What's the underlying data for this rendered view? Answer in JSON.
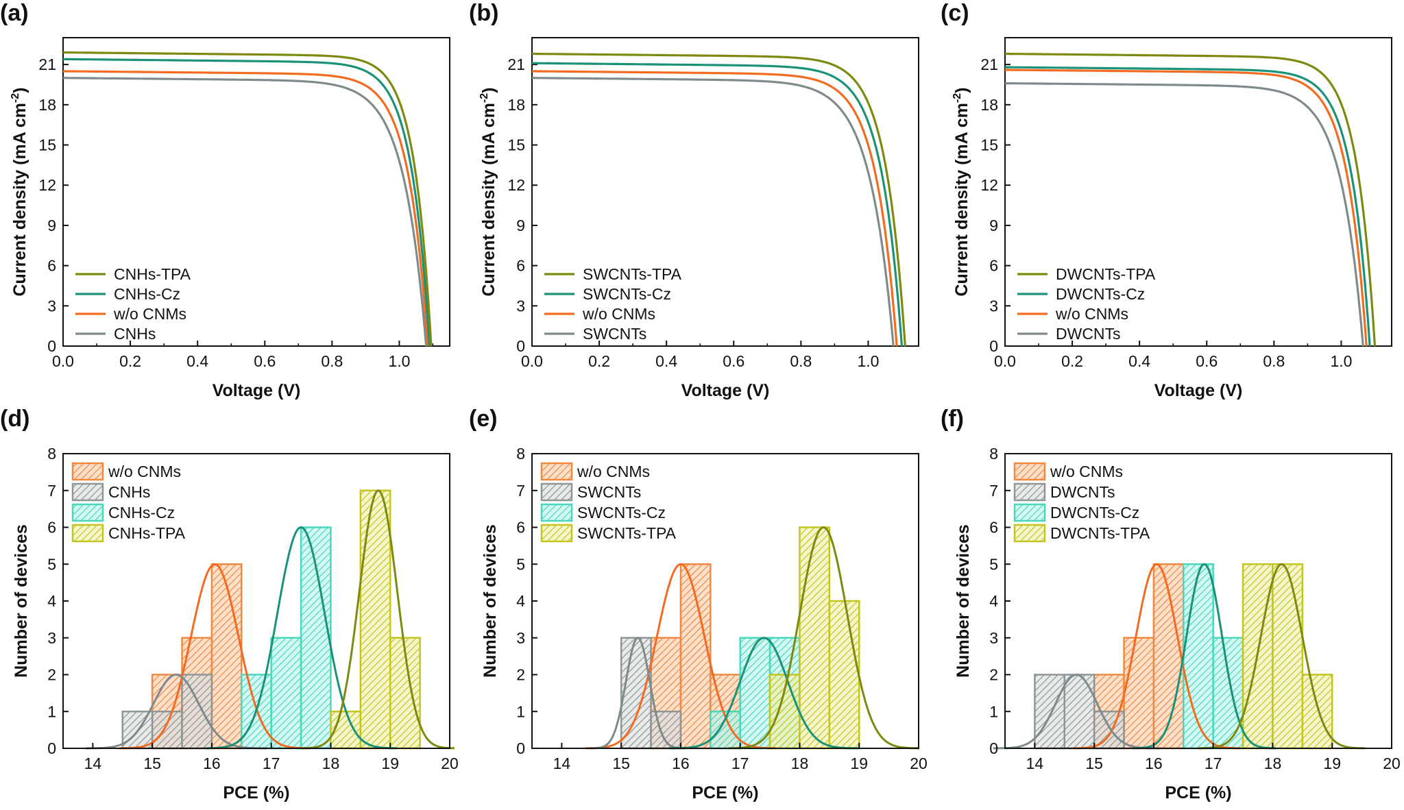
{
  "figure": {
    "panels": [
      {
        "label": "(a)",
        "type": "jv",
        "index": 0
      },
      {
        "label": "(b)",
        "type": "jv",
        "index": 1
      },
      {
        "label": "(c)",
        "type": "jv",
        "index": 2
      },
      {
        "label": "(d)",
        "type": "hist",
        "index": 0
      },
      {
        "label": "(e)",
        "type": "hist",
        "index": 1
      },
      {
        "label": "(f)",
        "type": "hist",
        "index": 2
      }
    ]
  },
  "chart_data": [
    {
      "type": "line",
      "panel": "(a)",
      "xlabel": "Voltage (V)",
      "ylabel": "Current density (mA cm-2)",
      "xlim": [
        0,
        1.15
      ],
      "ylim": [
        0,
        23
      ],
      "xticks": [
        "0.0",
        "0.2",
        "0.4",
        "0.6",
        "0.8",
        "1.0"
      ],
      "yticks": [
        "0",
        "3",
        "6",
        "9",
        "12",
        "15",
        "18",
        "21"
      ],
      "legend": "bottom-left",
      "series": [
        {
          "name": "CNHs-TPA",
          "color": "#7d8a0f",
          "jsc": 21.9,
          "voc": 1.095,
          "knee": 0.88
        },
        {
          "name": "CNHs-Cz",
          "color": "#1a9278",
          "jsc": 21.4,
          "voc": 1.09,
          "knee": 0.86
        },
        {
          "name": "w/o CNMs",
          "color": "#f26b21",
          "jsc": 20.5,
          "voc": 1.085,
          "knee": 0.84
        },
        {
          "name": "CNHs",
          "color": "#7f8a8c",
          "jsc": 20.0,
          "voc": 1.08,
          "knee": 0.8
        }
      ]
    },
    {
      "type": "line",
      "panel": "(b)",
      "xlabel": "Voltage (V)",
      "ylabel": "Current density (mA cm-2)",
      "xlim": [
        0,
        1.15
      ],
      "ylim": [
        0,
        23
      ],
      "xticks": [
        "0.0",
        "0.2",
        "0.4",
        "0.6",
        "0.8",
        "1.0"
      ],
      "yticks": [
        "0",
        "3",
        "6",
        "9",
        "12",
        "15",
        "18",
        "21"
      ],
      "legend": "bottom-left",
      "series": [
        {
          "name": "SWCNTs-TPA",
          "color": "#7d8a0f",
          "jsc": 21.8,
          "voc": 1.11,
          "knee": 0.86
        },
        {
          "name": "SWCNTs-Cz",
          "color": "#1a9278",
          "jsc": 21.1,
          "voc": 1.1,
          "knee": 0.84
        },
        {
          "name": "w/o CNMs",
          "color": "#f26b21",
          "jsc": 20.5,
          "voc": 1.085,
          "knee": 0.82
        },
        {
          "name": "SWCNTs",
          "color": "#7f8a8c",
          "jsc": 20.0,
          "voc": 1.075,
          "knee": 0.78
        }
      ]
    },
    {
      "type": "line",
      "panel": "(c)",
      "xlabel": "Voltage (V)",
      "ylabel": "Current density (mA cm-2)",
      "xlim": [
        0,
        1.15
      ],
      "ylim": [
        0,
        23
      ],
      "xticks": [
        "0.0",
        "0.2",
        "0.4",
        "0.6",
        "0.8",
        "1.0"
      ],
      "yticks": [
        "0",
        "3",
        "6",
        "9",
        "12",
        "15",
        "18",
        "21"
      ],
      "legend": "bottom-left",
      "series": [
        {
          "name": "DWCNTs-TPA",
          "color": "#7d8a0f",
          "jsc": 21.8,
          "voc": 1.1,
          "knee": 0.87
        },
        {
          "name": "DWCNTs-Cz",
          "color": "#1a9278",
          "jsc": 20.8,
          "voc": 1.085,
          "knee": 0.85
        },
        {
          "name": "w/o CNMs",
          "color": "#f26b21",
          "jsc": 20.6,
          "voc": 1.075,
          "knee": 0.83
        },
        {
          "name": "DWCNTs",
          "color": "#7f8a8c",
          "jsc": 19.6,
          "voc": 1.065,
          "knee": 0.79
        }
      ]
    },
    {
      "type": "bar",
      "panel": "(d)",
      "xlabel": "PCE (%)",
      "ylabel": "Number of devices",
      "xlim": [
        13.5,
        20
      ],
      "ylim": [
        0,
        8
      ],
      "binwidth": 0.5,
      "xticks": [
        "14",
        "15",
        "16",
        "17",
        "18",
        "19",
        "20"
      ],
      "yticks": [
        "0",
        "1",
        "2",
        "3",
        "4",
        "5",
        "6",
        "7",
        "8"
      ],
      "legend": "top-left",
      "series": [
        {
          "name": "w/o CNMs",
          "fill": "#fbc9a6",
          "edge": "#f08a40",
          "fit": "#f26b21",
          "bins": [
            [
              15.0,
              2
            ],
            [
              15.5,
              3
            ],
            [
              16.0,
              5
            ],
            [
              16.5,
              0
            ]
          ],
          "mean": 16.05,
          "sigma": 0.4,
          "peak": 5
        },
        {
          "name": "CNHs",
          "fill": "#d9dcdc",
          "edge": "#8e9697",
          "fit": "#7f8a8c",
          "bins": [
            [
              14.5,
              1
            ],
            [
              15.0,
              1
            ],
            [
              15.5,
              2
            ]
          ],
          "mean": 15.4,
          "sigma": 0.38,
          "peak": 2
        },
        {
          "name": "CNHs-Cz",
          "fill": "#b6f3e7",
          "edge": "#4ad8bd",
          "fit": "#1a9278",
          "bins": [
            [
              16.5,
              2
            ],
            [
              17.0,
              3
            ],
            [
              17.5,
              6
            ]
          ],
          "mean": 17.5,
          "sigma": 0.4,
          "peak": 6
        },
        {
          "name": "CNHs-TPA",
          "fill": "#eef0a8",
          "edge": "#c3c61f",
          "fit": "#7d8a0f",
          "bins": [
            [
              18.0,
              1
            ],
            [
              18.5,
              7
            ],
            [
              19.0,
              3
            ]
          ],
          "mean": 18.8,
          "sigma": 0.32,
          "peak": 7
        }
      ]
    },
    {
      "type": "bar",
      "panel": "(e)",
      "xlabel": "PCE (%)",
      "ylabel": "Number of devices",
      "xlim": [
        13.5,
        20
      ],
      "ylim": [
        0,
        8
      ],
      "binwidth": 0.5,
      "xticks": [
        "14",
        "15",
        "16",
        "17",
        "18",
        "19",
        "20"
      ],
      "yticks": [
        "0",
        "1",
        "2",
        "3",
        "4",
        "5",
        "6",
        "7",
        "8"
      ],
      "legend": "top-left",
      "series": [
        {
          "name": "w/o CNMs",
          "fill": "#fbc9a6",
          "edge": "#f08a40",
          "fit": "#f26b21",
          "bins": [
            [
              15.5,
              3
            ],
            [
              16.0,
              5
            ],
            [
              16.5,
              2
            ]
          ],
          "mean": 16.0,
          "sigma": 0.4,
          "peak": 5
        },
        {
          "name": "SWCNTs",
          "fill": "#d9dcdc",
          "edge": "#8e9697",
          "fit": "#7f8a8c",
          "bins": [
            [
              15.0,
              3
            ],
            [
              15.5,
              1
            ]
          ],
          "mean": 15.28,
          "sigma": 0.2,
          "peak": 3
        },
        {
          "name": "SWCNTs-Cz",
          "fill": "#b6f3e7",
          "edge": "#4ad8bd",
          "fit": "#1a9278",
          "bins": [
            [
              16.5,
              1
            ],
            [
              17.0,
              3
            ],
            [
              17.5,
              3
            ]
          ],
          "mean": 17.4,
          "sigma": 0.4,
          "peak": 3
        },
        {
          "name": "SWCNTs-TPA",
          "fill": "#eef0a8",
          "edge": "#c3c61f",
          "fit": "#7d8a0f",
          "bins": [
            [
              17.5,
              2
            ],
            [
              18.0,
              6
            ],
            [
              18.5,
              4
            ]
          ],
          "mean": 18.4,
          "sigma": 0.4,
          "peak": 6
        }
      ]
    },
    {
      "type": "bar",
      "panel": "(f)",
      "xlabel": "PCE (%)",
      "ylabel": "Number of devices",
      "xlim": [
        13.5,
        20
      ],
      "ylim": [
        0,
        8
      ],
      "binwidth": 0.5,
      "xticks": [
        "14",
        "15",
        "16",
        "17",
        "18",
        "19",
        "20"
      ],
      "yticks": [
        "0",
        "1",
        "2",
        "3",
        "4",
        "5",
        "6",
        "7",
        "8"
      ],
      "legend": "top-left",
      "series": [
        {
          "name": "w/o CNMs",
          "fill": "#fbc9a6",
          "edge": "#f08a40",
          "fit": "#f26b21",
          "bins": [
            [
              15.0,
              2
            ],
            [
              15.5,
              3
            ],
            [
              16.0,
              5
            ]
          ],
          "mean": 16.05,
          "sigma": 0.35,
          "peak": 5
        },
        {
          "name": "DWCNTs",
          "fill": "#d9dcdc",
          "edge": "#8e9697",
          "fit": "#7f8a8c",
          "bins": [
            [
              14.0,
              2
            ],
            [
              14.5,
              2
            ],
            [
              15.0,
              1
            ]
          ],
          "mean": 14.7,
          "sigma": 0.35,
          "peak": 2
        },
        {
          "name": "DWCNTs-Cz",
          "fill": "#b6f3e7",
          "edge": "#4ad8bd",
          "fit": "#1a9278",
          "bins": [
            [
              16.5,
              5
            ],
            [
              17.0,
              3
            ]
          ],
          "mean": 16.85,
          "sigma": 0.3,
          "peak": 5
        },
        {
          "name": "DWCNTs-TPA",
          "fill": "#eef0a8",
          "edge": "#c3c61f",
          "fit": "#7d8a0f",
          "bins": [
            [
              17.5,
              5
            ],
            [
              18.0,
              5
            ],
            [
              18.5,
              2
            ]
          ],
          "mean": 18.15,
          "sigma": 0.35,
          "peak": 5
        }
      ]
    }
  ]
}
